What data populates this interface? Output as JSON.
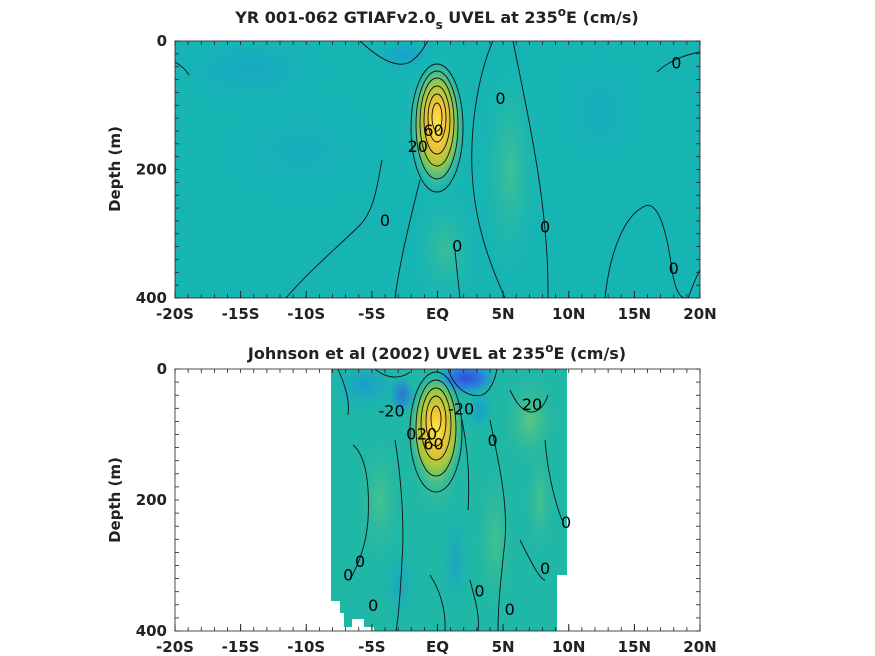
{
  "chart_data": [
    {
      "type": "heatmap",
      "title_main": "YR 001-062 GTIAFv2.0",
      "title_sub": "s",
      "title_rest": " UVEL at 235",
      "title_sup": "o",
      "title_end": "E (cm/s)",
      "ylabel": "Depth (m)",
      "xlabel": "",
      "xlim": [
        -20,
        20
      ],
      "ylim": [
        0,
        400
      ],
      "y_reversed": true,
      "x_ticks": [
        -20,
        -15,
        -10,
        -5,
        0,
        5,
        10,
        15,
        20
      ],
      "x_tick_labels": [
        "-20S",
        "-15S",
        "-10S",
        "-5S",
        "EQ",
        "5N",
        "10N",
        "15N",
        "20N"
      ],
      "y_ticks": [
        0,
        200,
        400
      ],
      "y_tick_labels": [
        "0",
        "200",
        "400"
      ],
      "contour_labels": [
        {
          "text": "0",
          "lon": 18.2,
          "depth": 35
        },
        {
          "text": "0",
          "lon": 4.8,
          "depth": 90
        },
        {
          "text": "0",
          "lon": -4,
          "depth": 280
        },
        {
          "text": "0",
          "lon": 1.5,
          "depth": 320
        },
        {
          "text": "0",
          "lon": 8.2,
          "depth": 290
        },
        {
          "text": "0",
          "lon": 18,
          "depth": 355
        },
        {
          "text": "20",
          "lon": -1.5,
          "depth": 165
        },
        {
          "text": "60",
          "lon": -0.3,
          "depth": 140
        }
      ]
    },
    {
      "type": "heatmap",
      "title_main": "Johnson et al (2002) UVEL at 235",
      "title_sup": "o",
      "title_end": "E (cm/s)",
      "ylabel": "Depth (m)",
      "xlabel": "",
      "xlim": [
        -20,
        20
      ],
      "ylim": [
        0,
        400
      ],
      "y_reversed": true,
      "x_ticks": [
        -20,
        -15,
        -10,
        -5,
        0,
        5,
        10,
        15,
        20
      ],
      "x_tick_labels": [
        "-20S",
        "-15S",
        "-10S",
        "-5S",
        "EQ",
        "5N",
        "10N",
        "15N",
        "20N"
      ],
      "y_ticks": [
        0,
        200,
        400
      ],
      "y_tick_labels": [
        "0",
        "200",
        "400"
      ],
      "data_lon_range": [
        -8,
        10
      ],
      "contour_labels": [
        {
          "text": "-20",
          "lon": -3.5,
          "depth": 65
        },
        {
          "text": "-20",
          "lon": 1.8,
          "depth": 62
        },
        {
          "text": "20",
          "lon": 7.2,
          "depth": 55
        },
        {
          "text": "0",
          "lon": -2,
          "depth": 100
        },
        {
          "text": "0",
          "lon": 4.2,
          "depth": 110
        },
        {
          "text": "20",
          "lon": -0.8,
          "depth": 100
        },
        {
          "text": "60",
          "lon": -0.3,
          "depth": 115
        },
        {
          "text": "0",
          "lon": 9.8,
          "depth": 235
        },
        {
          "text": "0",
          "lon": -6.8,
          "depth": 315
        },
        {
          "text": "0",
          "lon": -5.9,
          "depth": 295
        },
        {
          "text": "0",
          "lon": 8.2,
          "depth": 305
        },
        {
          "text": "0",
          "lon": 3.2,
          "depth": 340
        },
        {
          "text": "0",
          "lon": -4.9,
          "depth": 362
        },
        {
          "text": "0",
          "lon": 5.5,
          "depth": 368
        }
      ]
    }
  ]
}
